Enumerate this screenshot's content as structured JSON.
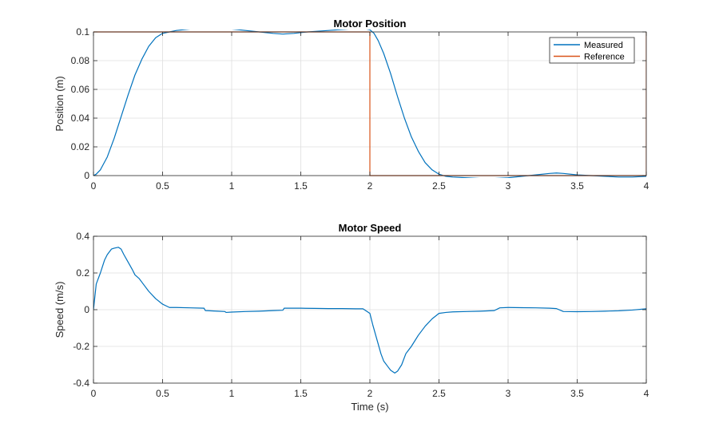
{
  "chart_data": [
    {
      "type": "line",
      "title": "Motor Position",
      "xlabel": "",
      "ylabel": "Position (m)",
      "xlim": [
        0,
        4
      ],
      "ylim": [
        0,
        0.1
      ],
      "xticks": [
        0,
        0.5,
        1,
        1.5,
        2,
        2.5,
        3,
        3.5,
        4
      ],
      "xtick_labels": [
        "0",
        "0.5",
        "1",
        "1.5",
        "2",
        "2.5",
        "3",
        "3.5",
        "4"
      ],
      "yticks": [
        0,
        0.02,
        0.04,
        0.06,
        0.08,
        0.1
      ],
      "ytick_labels": [
        "0",
        "0.02",
        "0.04",
        "0.06",
        "0.08",
        "0.1"
      ],
      "grid": true,
      "legend": "top-right",
      "series": [
        {
          "name": "Measured",
          "color": "#0072BD",
          "x": [
            0,
            0.02,
            0.05,
            0.1,
            0.15,
            0.2,
            0.25,
            0.3,
            0.35,
            0.4,
            0.45,
            0.5,
            0.55,
            0.6,
            0.7,
            0.8,
            0.9,
            1.0,
            1.1,
            1.2,
            1.3,
            1.37,
            1.45,
            1.55,
            1.7,
            1.85,
            1.95,
            2.0,
            2.03,
            2.06,
            2.1,
            2.15,
            2.2,
            2.25,
            2.3,
            2.35,
            2.4,
            2.45,
            2.5,
            2.55,
            2.6,
            2.7,
            2.8,
            2.9,
            3.0,
            3.1,
            3.2,
            3.3,
            3.35,
            3.4,
            3.5,
            3.6,
            3.7,
            3.8,
            3.9,
            4.0
          ],
          "y": [
            0,
            0.001,
            0.004,
            0.013,
            0.026,
            0.041,
            0.056,
            0.07,
            0.081,
            0.09,
            0.096,
            0.099,
            0.1,
            0.101,
            0.102,
            0.1025,
            0.1025,
            0.102,
            0.101,
            0.1,
            0.099,
            0.0985,
            0.099,
            0.1,
            0.101,
            0.102,
            0.1025,
            0.1015,
            0.099,
            0.094,
            0.085,
            0.071,
            0.055,
            0.04,
            0.027,
            0.017,
            0.009,
            0.004,
            0.001,
            -0.0005,
            -0.001,
            -0.0015,
            -0.002,
            -0.002,
            -0.0015,
            -0.0005,
            0.0005,
            0.0015,
            0.0018,
            0.0015,
            0.0005,
            0,
            -0.0005,
            -0.001,
            -0.001,
            -0.0005
          ]
        },
        {
          "name": "Reference",
          "color": "#D95319",
          "x": [
            0,
            2.0,
            2.0,
            4.0,
            4.0
          ],
          "y": [
            0.1,
            0.1,
            0,
            0,
            0.1
          ]
        }
      ]
    },
    {
      "type": "line",
      "title": "Motor Speed",
      "xlabel": "Time (s)",
      "ylabel": "Speed (m/s)",
      "xlim": [
        0,
        4
      ],
      "ylim": [
        -0.4,
        0.4
      ],
      "xticks": [
        0,
        0.5,
        1,
        1.5,
        2,
        2.5,
        3,
        3.5,
        4
      ],
      "xtick_labels": [
        "0",
        "0.5",
        "1",
        "1.5",
        "2",
        "2.5",
        "3",
        "3.5",
        "4"
      ],
      "yticks": [
        -0.4,
        -0.2,
        0,
        0.2,
        0.4
      ],
      "ytick_labels": [
        "-0.4",
        "-0.2",
        "0",
        "0.2",
        "0.4"
      ],
      "grid": true,
      "series": [
        {
          "name": "",
          "color": "#0072BD",
          "x": [
            0,
            0.02,
            0.05,
            0.08,
            0.1,
            0.13,
            0.15,
            0.18,
            0.2,
            0.22,
            0.25,
            0.28,
            0.3,
            0.33,
            0.36,
            0.4,
            0.45,
            0.5,
            0.55,
            0.6,
            0.7,
            0.8,
            0.81,
            0.9,
            0.95,
            0.96,
            1.0,
            1.1,
            1.2,
            1.3,
            1.37,
            1.38,
            1.5,
            1.6,
            1.7,
            1.8,
            1.9,
            1.95,
            2.0,
            2.02,
            2.05,
            2.08,
            2.1,
            2.13,
            2.15,
            2.18,
            2.2,
            2.23,
            2.26,
            2.3,
            2.35,
            2.4,
            2.45,
            2.5,
            2.55,
            2.6,
            2.7,
            2.8,
            2.9,
            2.94,
            3.0,
            3.1,
            3.2,
            3.3,
            3.35,
            3.4,
            3.5,
            3.6,
            3.7,
            3.8,
            3.9,
            4.0
          ],
          "y": [
            0,
            0.14,
            0.2,
            0.27,
            0.3,
            0.33,
            0.335,
            0.34,
            0.33,
            0.3,
            0.26,
            0.22,
            0.19,
            0.17,
            0.14,
            0.1,
            0.06,
            0.03,
            0.012,
            0.012,
            0.01,
            0.008,
            -0.005,
            -0.008,
            -0.01,
            -0.015,
            -0.013,
            -0.01,
            -0.008,
            -0.005,
            -0.003,
            0.008,
            0.008,
            0.007,
            0.006,
            0.006,
            0.005,
            0.005,
            -0.02,
            -0.08,
            -0.16,
            -0.24,
            -0.28,
            -0.31,
            -0.33,
            -0.345,
            -0.335,
            -0.3,
            -0.24,
            -0.2,
            -0.14,
            -0.09,
            -0.05,
            -0.02,
            -0.015,
            -0.012,
            -0.01,
            -0.008,
            -0.005,
            0.01,
            0.012,
            0.011,
            0.01,
            0.008,
            0.006,
            -0.01,
            -0.011,
            -0.01,
            -0.008,
            -0.006,
            -0.002,
            0.005
          ]
        }
      ]
    }
  ]
}
